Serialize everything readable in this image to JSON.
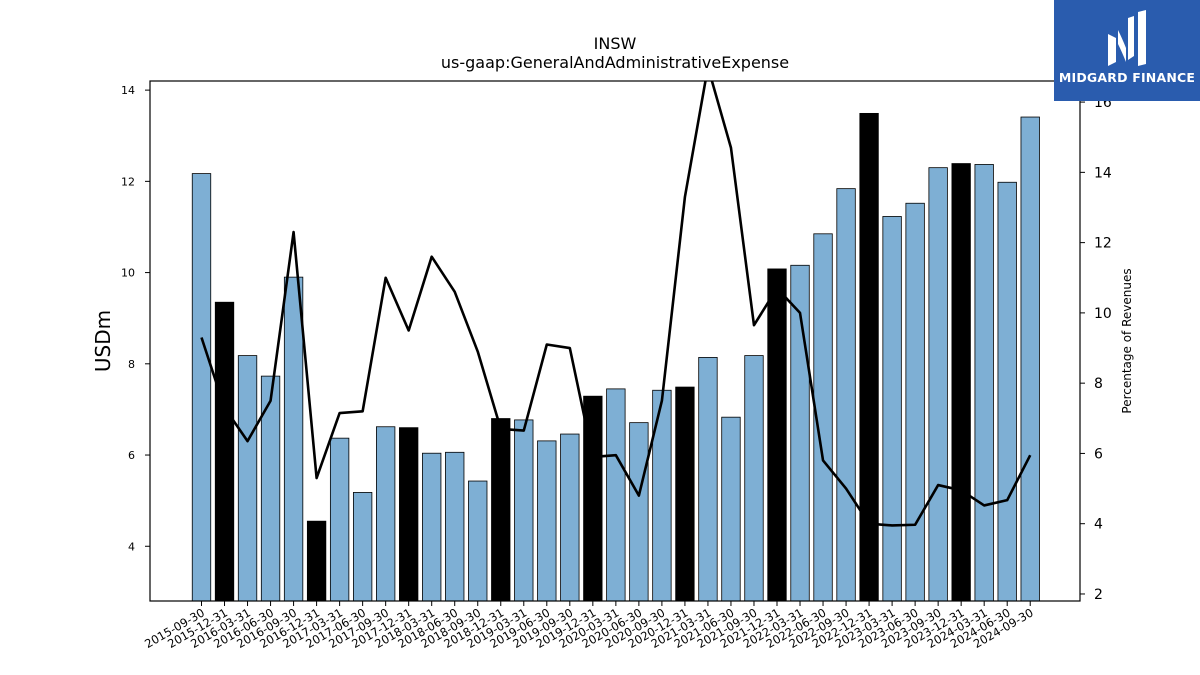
{
  "brand": {
    "name": "MIDGARD FINANCE",
    "logo_icon": "midgard-m-icon",
    "bg_color": "#2a5cae"
  },
  "chart_data": {
    "type": "bar",
    "title": "INSW",
    "subtitle": "us-gaap:GeneralAndAdministrativeExpense",
    "ylabel": "USDm",
    "y2label": "Percentage of Revenues",
    "ylim": [
      2.8,
      14.2
    ],
    "y2lim": [
      1.8,
      16.6
    ],
    "yticks": [
      4,
      6,
      8,
      10,
      12,
      14
    ],
    "y2ticks": [
      2,
      4,
      6,
      8,
      10,
      12,
      14,
      16
    ],
    "grid": false,
    "colors": {
      "bar": "#7eafd4",
      "bar_q4": "#000000",
      "line": "#000000"
    },
    "categories": [
      "2015-09-30",
      "2015-12-31",
      "2016-03-31",
      "2016-06-30",
      "2016-09-30",
      "2016-12-31",
      "2017-03-31",
      "2017-06-30",
      "2017-09-30",
      "2017-12-31",
      "2018-03-31",
      "2018-06-30",
      "2018-09-30",
      "2018-12-31",
      "2019-03-31",
      "2019-06-30",
      "2019-09-30",
      "2019-12-31",
      "2020-03-31",
      "2020-06-30",
      "2020-09-30",
      "2020-12-31",
      "2021-03-31",
      "2021-06-30",
      "2021-09-30",
      "2021-12-31",
      "2022-03-31",
      "2022-06-30",
      "2022-09-30",
      "2022-12-31",
      "2023-03-31",
      "2023-06-30",
      "2023-09-30",
      "2023-12-31",
      "2024-03-31",
      "2024-06-30",
      "2024-09-30"
    ],
    "series": [
      {
        "kind": "bar",
        "axis": "left",
        "values": [
          12.17,
          9.35,
          8.18,
          7.73,
          9.9,
          4.55,
          6.37,
          5.18,
          6.62,
          6.6,
          6.04,
          6.06,
          5.43,
          6.8,
          6.77,
          6.31,
          6.46,
          7.29,
          7.45,
          6.71,
          7.42,
          7.49,
          8.14,
          6.83,
          8.18,
          10.08,
          10.16,
          10.85,
          11.84,
          13.49,
          11.23,
          11.52,
          12.3,
          12.39,
          12.37,
          11.98,
          13.41
        ],
        "q4_flags": [
          false,
          true,
          false,
          false,
          false,
          true,
          false,
          false,
          false,
          true,
          false,
          false,
          false,
          true,
          false,
          false,
          false,
          true,
          false,
          false,
          false,
          true,
          false,
          false,
          false,
          true,
          false,
          false,
          false,
          true,
          false,
          false,
          false,
          true,
          false,
          false,
          false
        ]
      },
      {
        "kind": "line",
        "axis": "right",
        "values": [
          9.3,
          7.3,
          6.35,
          7.5,
          12.3,
          5.3,
          7.15,
          7.2,
          11.0,
          9.5,
          11.6,
          10.6,
          8.9,
          6.7,
          6.65,
          9.1,
          9.0,
          5.9,
          5.95,
          4.8,
          7.5,
          13.3,
          17.0,
          14.7,
          9.65,
          10.7,
          10.0,
          5.8,
          5.0,
          4.0,
          3.95,
          3.97,
          5.1,
          4.95,
          4.52,
          4.67,
          5.95
        ]
      }
    ]
  }
}
